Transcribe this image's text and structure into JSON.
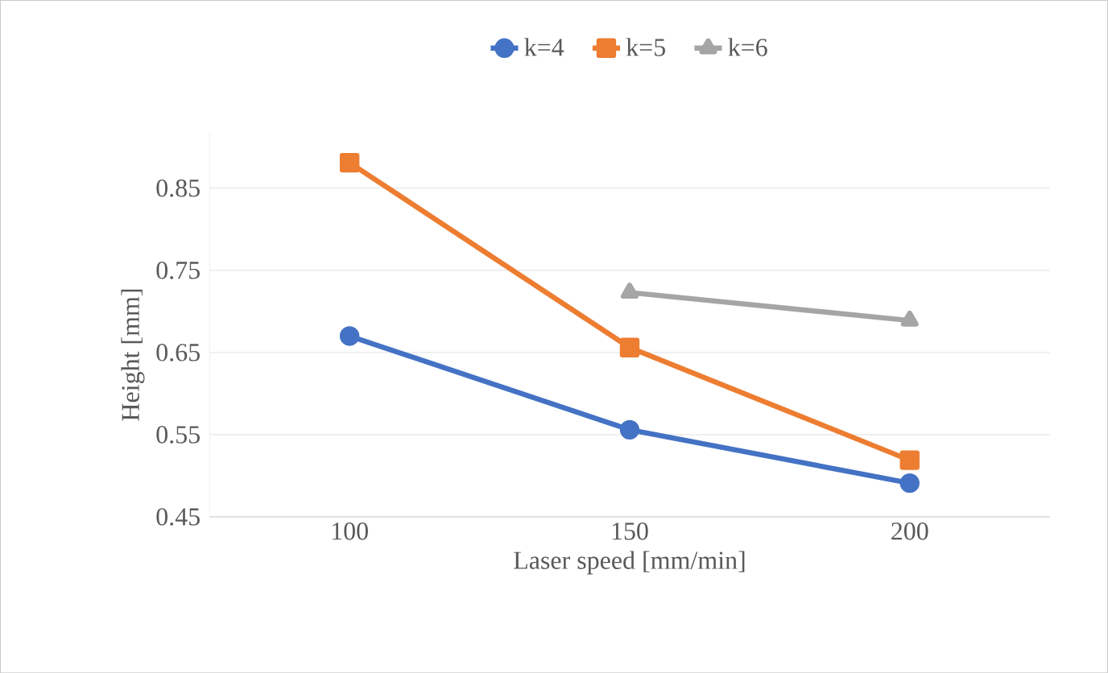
{
  "chart_data": {
    "type": "line",
    "xlabel": "Laser speed [mm/min]",
    "ylabel": "Height [mm]",
    "categories": [
      "100",
      "150",
      "200"
    ],
    "ylim": [
      0.45,
      0.92
    ],
    "yticks": [
      0.45,
      0.55,
      0.65,
      0.75,
      0.85
    ],
    "grid": "y",
    "legend": "top",
    "line_style": "solid",
    "series": [
      {
        "name": "k=4",
        "color": "#4472c4",
        "marker": "circle",
        "values": [
          0.67,
          0.556,
          0.491
        ]
      },
      {
        "name": "k=5",
        "color": "#ed7d31",
        "marker": "square",
        "values": [
          0.881,
          0.656,
          0.519
        ]
      },
      {
        "name": "k=6",
        "color": "#a5a5a5",
        "marker": "triangle",
        "values": [
          null,
          0.723,
          0.689
        ]
      }
    ]
  }
}
